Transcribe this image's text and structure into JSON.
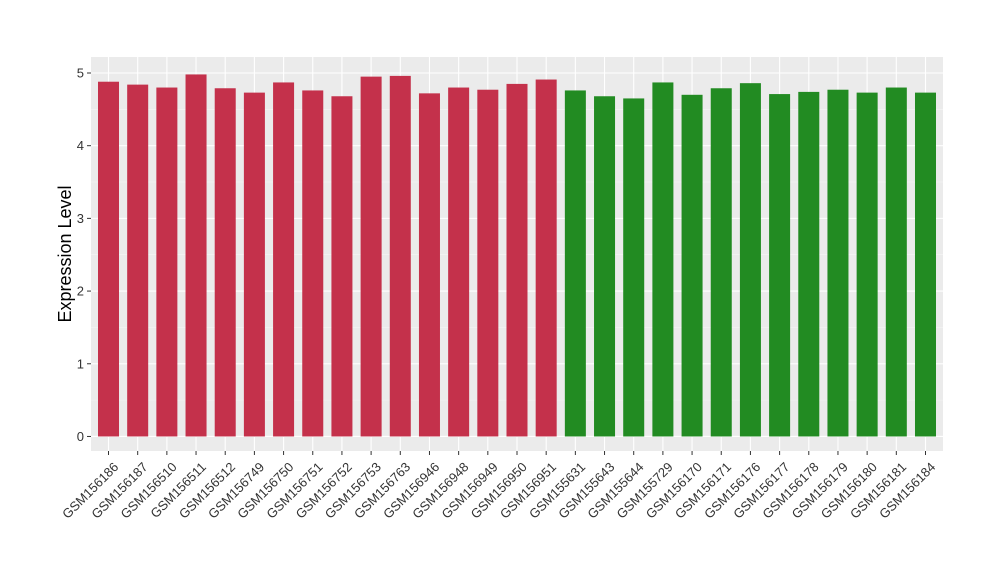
{
  "chart_data": {
    "type": "bar",
    "title": "",
    "xlabel": "",
    "ylabel": "Expression Level",
    "ylim": [
      -0.2,
      5.22
    ],
    "yticks": [
      0,
      1,
      2,
      3,
      4,
      5
    ],
    "grid": true,
    "legend": "none",
    "categories": [
      "GSM156186",
      "GSM156187",
      "GSM156510",
      "GSM156511",
      "GSM156512",
      "GSM156749",
      "GSM156750",
      "GSM156751",
      "GSM156752",
      "GSM156753",
      "GSM156763",
      "GSM156946",
      "GSM156948",
      "GSM156949",
      "GSM156950",
      "GSM156951",
      "GSM155631",
      "GSM155643",
      "GSM155644",
      "GSM155729",
      "GSM156170",
      "GSM156171",
      "GSM156176",
      "GSM156177",
      "GSM156178",
      "GSM156179",
      "GSM156180",
      "GSM156181",
      "GSM156184"
    ],
    "values": [
      4.88,
      4.84,
      4.8,
      4.98,
      4.79,
      4.73,
      4.87,
      4.76,
      4.68,
      4.95,
      4.96,
      4.72,
      4.8,
      4.77,
      4.85,
      4.91,
      4.76,
      4.68,
      4.65,
      4.87,
      4.7,
      4.79,
      4.86,
      4.71,
      4.74,
      4.77,
      4.73,
      4.8,
      4.73
    ],
    "bar_colors": [
      "#c4314b",
      "#c4314b",
      "#c4314b",
      "#c4314b",
      "#c4314b",
      "#c4314b",
      "#c4314b",
      "#c4314b",
      "#c4314b",
      "#c4314b",
      "#c4314b",
      "#c4314b",
      "#c4314b",
      "#c4314b",
      "#c4314b",
      "#c4314b",
      "#228b22",
      "#228b22",
      "#228b22",
      "#228b22",
      "#228b22",
      "#228b22",
      "#228b22",
      "#228b22",
      "#228b22",
      "#228b22",
      "#228b22",
      "#228b22",
      "#228b22"
    ],
    "colors": {
      "panel_background": "#ebebeb",
      "grid_major": "#ffffff",
      "grid_minor": "#f5f5f5",
      "axis_text": "#333333",
      "axis_title": "#000000"
    }
  }
}
